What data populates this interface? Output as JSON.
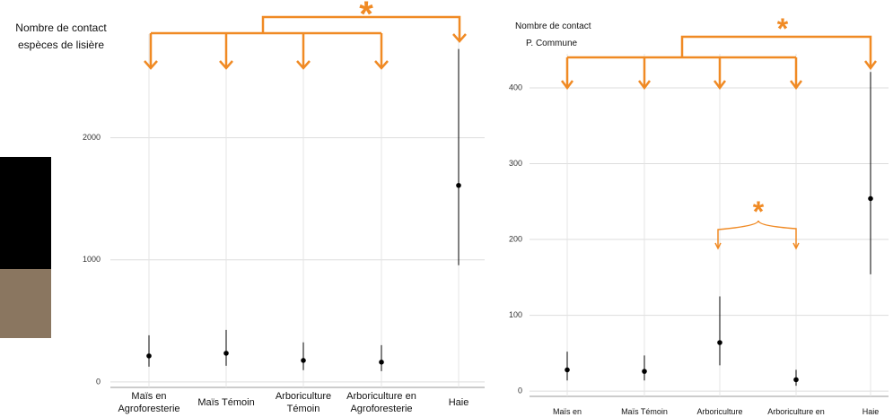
{
  "chart_data": [
    {
      "type": "pointrange",
      "title_lines": [
        "Nombre de contact",
        "espèces de lisière"
      ],
      "categories": [
        "Maïs en Agroforesterie",
        "Maïs Témoin",
        "Arboriculture Témoin",
        "Arboriculture en Agroforesterie",
        "Haie"
      ],
      "values": [
        213,
        235,
        176,
        162,
        1610
      ],
      "low": [
        125,
        132,
        96,
        88,
        956
      ],
      "high": [
        382,
        426,
        324,
        301,
        2728
      ],
      "ylim": [
        -45,
        2850
      ],
      "yticks": [
        0,
        1000,
        2000
      ],
      "grid": true,
      "color": "#000000",
      "annotations": [
        "*"
      ]
    },
    {
      "type": "pointrange",
      "title_lines": [
        "Nombre de contact",
        "P. Commune"
      ],
      "categories": [
        "Maïs en",
        "Maïs Témoin",
        "Arboriculture",
        "Arboriculture en",
        "Haie"
      ],
      "values": [
        28,
        26,
        64,
        15,
        254
      ],
      "low": [
        14,
        14,
        34,
        7,
        154
      ],
      "high": [
        52,
        47,
        125,
        28,
        421
      ],
      "ylim": [
        -7,
        445
      ],
      "yticks": [
        0,
        100,
        200,
        300,
        400
      ],
      "grid": true,
      "color": "#000000",
      "annotations": [
        "*",
        "*"
      ]
    }
  ]
}
